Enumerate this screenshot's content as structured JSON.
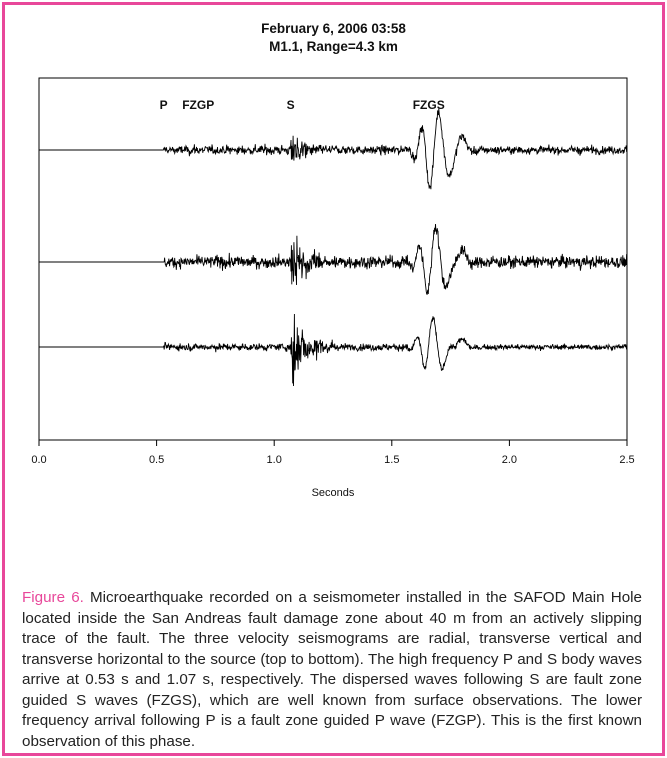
{
  "chart_data": {
    "type": "line",
    "title": "February 6, 2006 03:58",
    "subtitle": "M1.1, Range=4.3 km",
    "xlabel": "Seconds",
    "ylabel": "",
    "xlim": [
      0.0,
      2.5
    ],
    "xticks": [
      "0.0",
      "0.5",
      "1.0",
      "1.5",
      "2.0",
      "2.5"
    ],
    "grid": false,
    "phase_labels": [
      {
        "label": "P",
        "time": 0.53
      },
      {
        "label": "FZGP",
        "time": 0.66
      },
      {
        "label": "S",
        "time": 1.07
      },
      {
        "label": "FZGS",
        "time": 1.64
      }
    ],
    "series": [
      {
        "component": "radial",
        "onset": 0.53,
        "s_arrival": 1.07,
        "fzgs_peak": 1.68,
        "noise": 0.28,
        "s_amp": 0.45,
        "fzgs_amp": 1.0,
        "coda": 0.25
      },
      {
        "component": "transverse vertical",
        "onset": 0.53,
        "s_arrival": 1.07,
        "fzgs_peak": 1.68,
        "noise": 0.33,
        "s_amp": 0.85,
        "fzgs_amp": 0.75,
        "coda": 0.32
      },
      {
        "component": "transverse horizontal",
        "onset": 0.53,
        "s_arrival": 1.07,
        "fzgs_peak": 1.68,
        "noise": 0.15,
        "s_amp": 1.0,
        "fzgs_amp": 0.5,
        "coda": 0.12
      }
    ]
  },
  "caption": {
    "label": "Figure 6.",
    "text": " Microearthquake recorded on a seismometer installed in the SAFOD Main Hole located inside the San Andreas fault damage zone about 40 m from an actively slipping trace of the fault.  The three velocity seismograms are radial, transverse vertical and transverse horizontal to the source (top to bottom). The high frequency P and S body waves arrive at 0.53 s and 1.07 s, respectively.  The dispersed waves following S are fault zone guided S waves (FZGS), which are well known from surface observations.  The lower frequency arrival following P is a fault zone guided P wave (FZGP). This is the first known observation of this phase."
  },
  "colors": {
    "frame": "#e8479a",
    "caption_label": "#e8479a",
    "trace": "#000000"
  }
}
